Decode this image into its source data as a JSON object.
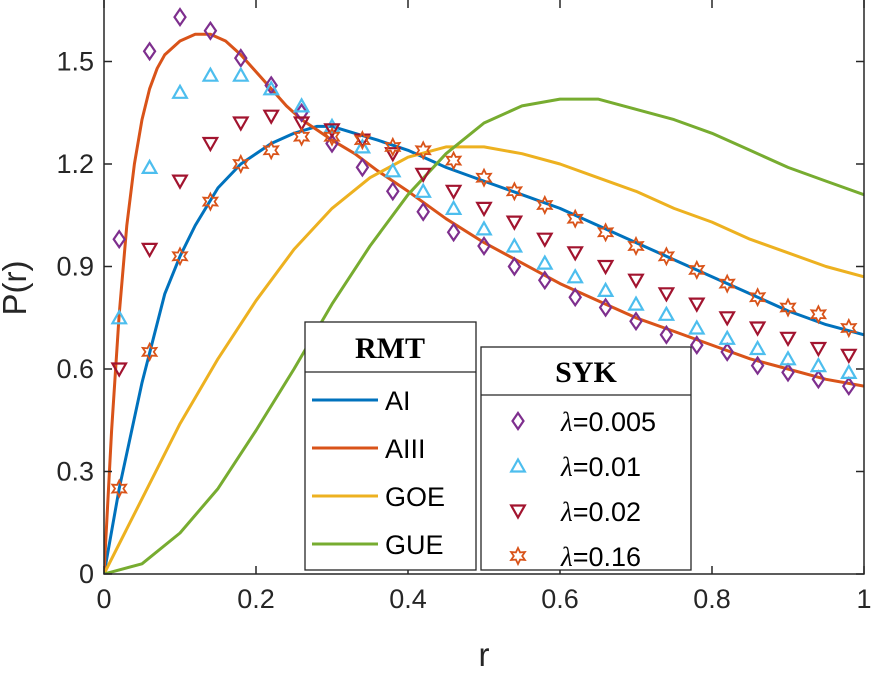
{
  "chart_data": {
    "type": "line",
    "xlabel": "r",
    "ylabel": "P(r)",
    "xlim": [
      0,
      1
    ],
    "ylim": [
      0,
      1.68
    ],
    "x_ticks": [
      0,
      0.2,
      0.4,
      0.6,
      0.8,
      1
    ],
    "x_tick_labels": [
      "0",
      "0.2",
      "0.4",
      "0.6",
      "0.8",
      "1"
    ],
    "y_ticks": [
      0,
      0.3,
      0.6,
      0.9,
      1.2,
      1.5
    ],
    "y_tick_labels": [
      "0",
      "0.3",
      "0.6",
      "0.9",
      "1.2",
      "1.5"
    ],
    "rmt_legend_title": "RMT",
    "syk_legend_title": "SYK",
    "lines": [
      {
        "name": "AI",
        "color": "#0072BD",
        "x": [
          0,
          0.02,
          0.05,
          0.08,
          0.1,
          0.12,
          0.15,
          0.18,
          0.2,
          0.22,
          0.25,
          0.28,
          0.3,
          0.33,
          0.36,
          0.4,
          0.45,
          0.5,
          0.55,
          0.6,
          0.65,
          0.7,
          0.75,
          0.8,
          0.85,
          0.9,
          0.95,
          1.0
        ],
        "y": [
          0,
          0.25,
          0.56,
          0.82,
          0.93,
          1.02,
          1.13,
          1.2,
          1.23,
          1.26,
          1.29,
          1.31,
          1.31,
          1.29,
          1.27,
          1.24,
          1.19,
          1.15,
          1.11,
          1.07,
          1.02,
          0.97,
          0.92,
          0.87,
          0.82,
          0.77,
          0.73,
          0.7
        ]
      },
      {
        "name": "AIII",
        "color": "#D95319",
        "x": [
          0,
          0.01,
          0.02,
          0.03,
          0.04,
          0.05,
          0.06,
          0.07,
          0.08,
          0.1,
          0.12,
          0.14,
          0.16,
          0.18,
          0.2,
          0.22,
          0.24,
          0.26,
          0.28,
          0.3,
          0.33,
          0.36,
          0.4,
          0.45,
          0.5,
          0.55,
          0.6,
          0.65,
          0.7,
          0.75,
          0.8,
          0.85,
          0.9,
          0.95,
          1.0
        ],
        "y": [
          0,
          0.42,
          0.76,
          1.02,
          1.2,
          1.33,
          1.42,
          1.48,
          1.52,
          1.56,
          1.58,
          1.58,
          1.56,
          1.52,
          1.47,
          1.42,
          1.37,
          1.33,
          1.3,
          1.27,
          1.23,
          1.18,
          1.12,
          1.04,
          0.97,
          0.91,
          0.85,
          0.8,
          0.75,
          0.71,
          0.67,
          0.63,
          0.6,
          0.57,
          0.55
        ]
      },
      {
        "name": "GOE",
        "color": "#EDB120",
        "x": [
          0,
          0.05,
          0.1,
          0.15,
          0.2,
          0.25,
          0.3,
          0.35,
          0.4,
          0.45,
          0.5,
          0.55,
          0.6,
          0.65,
          0.7,
          0.75,
          0.8,
          0.85,
          0.9,
          0.95,
          1.0
        ],
        "y": [
          0,
          0.22,
          0.44,
          0.63,
          0.8,
          0.95,
          1.07,
          1.16,
          1.22,
          1.25,
          1.25,
          1.23,
          1.2,
          1.16,
          1.12,
          1.07,
          1.03,
          0.98,
          0.94,
          0.9,
          0.87
        ]
      },
      {
        "name": "GUE",
        "color": "#77AC30",
        "x": [
          0,
          0.05,
          0.1,
          0.15,
          0.2,
          0.25,
          0.3,
          0.35,
          0.4,
          0.45,
          0.5,
          0.55,
          0.6,
          0.65,
          0.7,
          0.75,
          0.8,
          0.85,
          0.9,
          0.95,
          1.0
        ],
        "y": [
          0,
          0.03,
          0.12,
          0.25,
          0.42,
          0.6,
          0.79,
          0.96,
          1.11,
          1.23,
          1.32,
          1.37,
          1.39,
          1.39,
          1.36,
          1.33,
          1.29,
          1.24,
          1.19,
          1.15,
          1.11
        ]
      }
    ],
    "markers": [
      {
        "name": "λ=0.005",
        "label_symbol": "λ",
        "label_value": "=0.005",
        "symbol": "diamond",
        "color": "#7E2F8E",
        "x": [
          0.02,
          0.06,
          0.1,
          0.14,
          0.18,
          0.22,
          0.26,
          0.3,
          0.34,
          0.38,
          0.42,
          0.46,
          0.5,
          0.54,
          0.58,
          0.62,
          0.66,
          0.7,
          0.74,
          0.78,
          0.82,
          0.86,
          0.9,
          0.94,
          0.98
        ],
        "y": [
          0.98,
          1.53,
          1.63,
          1.59,
          1.51,
          1.43,
          1.35,
          1.26,
          1.19,
          1.12,
          1.06,
          1.0,
          0.96,
          0.9,
          0.86,
          0.81,
          0.78,
          0.74,
          0.7,
          0.67,
          0.65,
          0.61,
          0.59,
          0.57,
          0.55
        ]
      },
      {
        "name": "λ=0.01",
        "label_symbol": "λ",
        "label_value": "=0.01",
        "symbol": "triangle-up",
        "color": "#4DBEEE",
        "x": [
          0.02,
          0.06,
          0.1,
          0.14,
          0.18,
          0.22,
          0.26,
          0.3,
          0.34,
          0.38,
          0.42,
          0.46,
          0.5,
          0.54,
          0.58,
          0.62,
          0.66,
          0.7,
          0.74,
          0.78,
          0.82,
          0.86,
          0.9,
          0.94,
          0.98
        ],
        "y": [
          0.75,
          1.19,
          1.41,
          1.46,
          1.46,
          1.42,
          1.37,
          1.31,
          1.25,
          1.18,
          1.12,
          1.07,
          1.01,
          0.96,
          0.91,
          0.87,
          0.83,
          0.79,
          0.76,
          0.72,
          0.69,
          0.66,
          0.63,
          0.61,
          0.59
        ]
      },
      {
        "name": "λ=0.02",
        "label_symbol": "λ",
        "label_value": "=0.02",
        "symbol": "triangle-down",
        "color": "#A2142F",
        "x": [
          0.02,
          0.06,
          0.1,
          0.14,
          0.18,
          0.22,
          0.26,
          0.3,
          0.34,
          0.38,
          0.42,
          0.46,
          0.5,
          0.54,
          0.58,
          0.62,
          0.66,
          0.7,
          0.74,
          0.78,
          0.82,
          0.86,
          0.9,
          0.94,
          0.98
        ],
        "y": [
          0.6,
          0.95,
          1.15,
          1.26,
          1.32,
          1.34,
          1.32,
          1.3,
          1.27,
          1.23,
          1.17,
          1.12,
          1.07,
          1.03,
          0.98,
          0.94,
          0.9,
          0.86,
          0.82,
          0.79,
          0.75,
          0.72,
          0.69,
          0.66,
          0.64
        ]
      },
      {
        "name": "λ=0.16",
        "label_symbol": "λ",
        "label_value": "=0.16",
        "symbol": "hexagram",
        "color": "#D95319",
        "x": [
          0.02,
          0.06,
          0.1,
          0.14,
          0.18,
          0.22,
          0.26,
          0.3,
          0.34,
          0.38,
          0.42,
          0.46,
          0.5,
          0.54,
          0.58,
          0.62,
          0.66,
          0.7,
          0.74,
          0.78,
          0.82,
          0.86,
          0.9,
          0.94,
          0.98
        ],
        "y": [
          0.25,
          0.65,
          0.93,
          1.09,
          1.2,
          1.24,
          1.28,
          1.28,
          1.27,
          1.25,
          1.24,
          1.21,
          1.16,
          1.12,
          1.08,
          1.04,
          1.0,
          0.96,
          0.93,
          0.89,
          0.85,
          0.81,
          0.78,
          0.76,
          0.72
        ]
      }
    ]
  }
}
